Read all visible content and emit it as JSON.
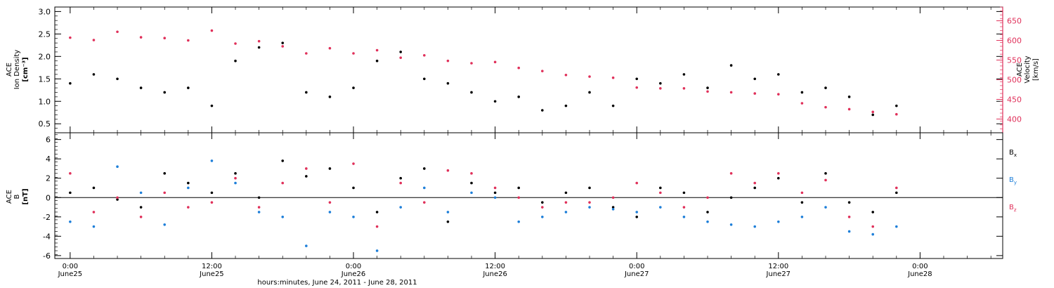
{
  "chart_data": [
    {
      "type": "scatter",
      "panel": "top",
      "left_axis": {
        "label": [
          "ACE",
          "Ion Density",
          "[cm⁻³]"
        ],
        "ylim": [
          0.3,
          3.1
        ],
        "ticks": [
          "0.5",
          "1.0",
          "1.5",
          "2.0",
          "2.5",
          "3.0"
        ],
        "tick_values": [
          0.5,
          1.0,
          1.5,
          2.0,
          2.5,
          3.0
        ]
      },
      "right_axis": {
        "label": [
          "ACE",
          "Velocity",
          "[km/s]"
        ],
        "ylim": [
          365,
          685
        ],
        "ticks": [
          "400",
          "450",
          "500",
          "550",
          "600",
          "650"
        ],
        "tick_values": [
          400,
          450,
          500,
          550,
          600,
          650
        ],
        "color": "#e0305a"
      },
      "series": [
        {
          "name": "",
          "color": "#000000",
          "axis": "left",
          "x_hours": [
            0,
            2,
            4,
            6,
            8,
            10,
            12,
            14,
            16,
            18,
            20,
            22,
            24,
            26,
            28,
            30,
            32,
            34,
            36,
            38,
            40,
            42,
            44,
            46,
            48,
            50,
            52,
            54,
            56,
            58,
            60,
            62,
            64,
            66,
            68,
            70
          ],
          "values": [
            1.4,
            1.6,
            1.5,
            1.3,
            1.2,
            1.3,
            0.9,
            1.9,
            2.2,
            2.3,
            1.2,
            1.1,
            1.3,
            1.9,
            2.1,
            1.5,
            1.4,
            1.2,
            1.0,
            1.1,
            0.8,
            0.9,
            1.2,
            0.9,
            1.5,
            1.4,
            1.6,
            1.3,
            1.8,
            1.5,
            1.6,
            1.2,
            1.3,
            1.1,
            0.7,
            0.9
          ]
        },
        {
          "name": "",
          "color": "#e0305a",
          "axis": "right",
          "x_hours": [
            0,
            2,
            4,
            6,
            8,
            10,
            12,
            14,
            16,
            18,
            20,
            22,
            24,
            26,
            28,
            30,
            32,
            34,
            36,
            38,
            40,
            42,
            44,
            46,
            48,
            50,
            52,
            54,
            56,
            58,
            60,
            62,
            64,
            66,
            68,
            70
          ],
          "values": [
            607,
            601,
            622,
            608,
            606,
            600,
            625,
            592,
            598,
            585,
            567,
            580,
            567,
            575,
            556,
            562,
            548,
            542,
            545,
            530,
            522,
            512,
            508,
            505,
            480,
            478,
            478,
            470,
            468,
            465,
            463,
            440,
            430,
            425,
            418,
            412
          ]
        }
      ]
    },
    {
      "type": "scatter",
      "panel": "bottom",
      "left_axis": {
        "label": [
          "ACE",
          "B",
          "[nT]"
        ],
        "ylim": [
          -6.3,
          6.7
        ],
        "ticks": [
          "-6",
          "-4",
          "-2",
          "0",
          "2",
          "4",
          "6"
        ],
        "tick_values": [
          -6,
          -4,
          -2,
          0,
          2,
          4,
          6
        ]
      },
      "zero_line": true,
      "series": [
        {
          "name": "Bx",
          "color": "#000000",
          "x_hours": [
            0,
            2,
            4,
            6,
            8,
            10,
            12,
            14,
            16,
            18,
            20,
            22,
            24,
            26,
            28,
            30,
            32,
            34,
            36,
            38,
            40,
            42,
            44,
            46,
            48,
            50,
            52,
            54,
            56,
            58,
            60,
            62,
            64,
            66,
            68,
            70
          ],
          "values": [
            0.5,
            1.0,
            -0.2,
            -1.0,
            2.5,
            1.5,
            0.5,
            2.5,
            0.0,
            3.8,
            2.2,
            3.0,
            1.0,
            -1.5,
            2.0,
            3.0,
            -2.5,
            1.5,
            0.5,
            1.0,
            -0.5,
            0.5,
            1.0,
            -1.0,
            -2.0,
            1.0,
            0.5,
            -1.5,
            0.0,
            1.0,
            2.0,
            -0.5,
            2.5,
            -0.5,
            -1.5,
            0.5
          ]
        },
        {
          "name": "By",
          "color": "#1e7fd9",
          "x_hours": [
            0,
            2,
            4,
            6,
            8,
            10,
            12,
            14,
            16,
            18,
            20,
            22,
            24,
            26,
            28,
            30,
            32,
            34,
            36,
            38,
            40,
            42,
            44,
            46,
            48,
            50,
            52,
            54,
            56,
            58,
            60,
            62,
            64,
            66,
            68,
            70
          ],
          "values": [
            -2.5,
            -3.0,
            3.2,
            0.5,
            -2.8,
            1.0,
            3.8,
            1.5,
            -1.5,
            -2.0,
            -5.0,
            -1.5,
            -2.0,
            -5.5,
            -1.0,
            1.0,
            -1.5,
            0.5,
            0.0,
            -2.5,
            -2.0,
            -1.5,
            -1.0,
            -1.2,
            -1.5,
            -1.0,
            -2.0,
            -2.5,
            -2.8,
            -3.0,
            -2.5,
            -2.0,
            -1.0,
            -3.5,
            -3.8,
            -3.0
          ]
        },
        {
          "name": "Bz",
          "color": "#e0305a",
          "x_hours": [
            0,
            2,
            4,
            6,
            8,
            10,
            12,
            14,
            16,
            18,
            20,
            22,
            24,
            26,
            28,
            30,
            32,
            34,
            36,
            38,
            40,
            42,
            44,
            46,
            48,
            50,
            52,
            54,
            56,
            58,
            60,
            62,
            64,
            66,
            68,
            70
          ],
          "values": [
            2.5,
            -1.5,
            0.0,
            -2.0,
            0.5,
            -1.0,
            -0.5,
            2.0,
            -1.0,
            1.5,
            3.0,
            -0.5,
            3.5,
            -3.0,
            1.5,
            -0.5,
            2.8,
            2.5,
            1.0,
            0.0,
            -1.0,
            -0.5,
            -0.5,
            0.0,
            1.5,
            0.5,
            -1.0,
            0.0,
            2.5,
            1.5,
            2.5,
            0.5,
            1.8,
            -2.0,
            -3.0,
            1.0
          ]
        }
      ],
      "legend": {
        "placement": "right",
        "entries": [
          {
            "base": "B",
            "sub": "x",
            "color": "#000000"
          },
          {
            "base": "B",
            "sub": "y",
            "color": "#1e7fd9"
          },
          {
            "base": "B",
            "sub": "z",
            "color": "#e0305a"
          }
        ]
      }
    }
  ],
  "x_axis": {
    "xlim_hours": [
      -1.3,
      79
    ],
    "major_ticks_hours": [
      0,
      12,
      24,
      36,
      48,
      60,
      72
    ],
    "tick_labels": [
      {
        "time": "0:00",
        "date": "June25"
      },
      {
        "time": "12:00",
        "date": "June25"
      },
      {
        "time": "0:00",
        "date": "June26"
      },
      {
        "time": "12:00",
        "date": "June26"
      },
      {
        "time": "0:00",
        "date": "June27"
      },
      {
        "time": "12:00",
        "date": "June27"
      },
      {
        "time": "0:00",
        "date": "June28"
      }
    ],
    "xlabel": "hours:minutes, June 24, 2011 - June 28, 2011"
  }
}
